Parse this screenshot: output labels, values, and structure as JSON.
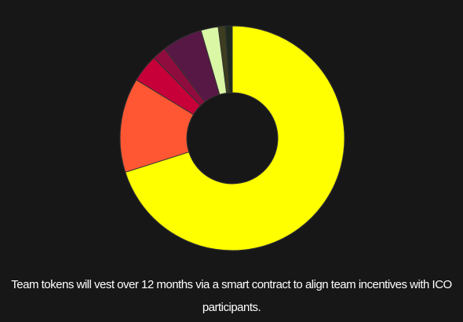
{
  "chart_data": {
    "type": "donut",
    "categories": [
      null,
      null,
      null,
      null,
      null,
      null,
      null,
      null
    ],
    "values": [
      70.1,
      13.6,
      4,
      2,
      5.8,
      2.5,
      1,
      1
    ],
    "colors": [
      "#ffff00",
      "#ff5733",
      "#c70039",
      "#900c3f",
      "#581845",
      "#daf7a6",
      "#3d3d1f",
      "#1f2a1f"
    ]
  },
  "caption": "Team tokens will vest over 12 months via a smart contract to align team incentives with ICO participants."
}
